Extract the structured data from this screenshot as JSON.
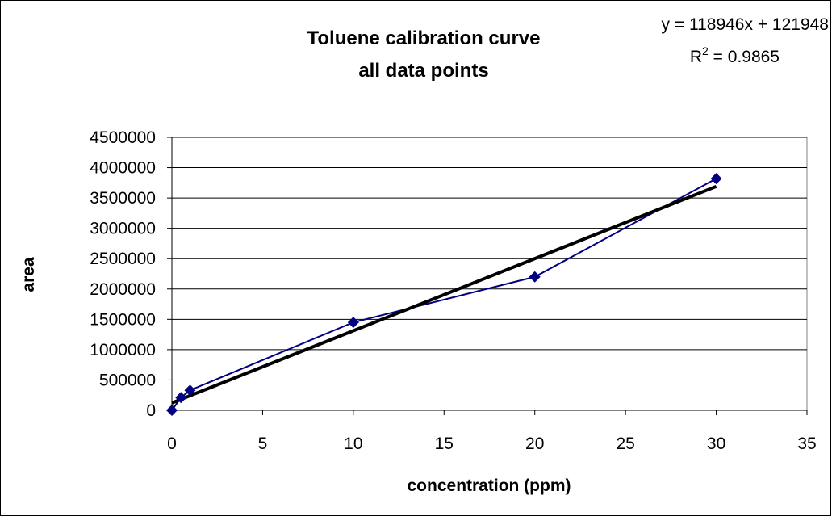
{
  "chart_data": {
    "type": "scatter",
    "title": [
      "Toluene calibration curve",
      "all data points"
    ],
    "equation": "y = 118946x + 121948",
    "r_squared_label": [
      "R",
      "2",
      " = 0.9865"
    ],
    "x_label": "concentration (ppm)",
    "y_label": "area",
    "series": [
      {
        "color": "#000080",
        "x": [
          0,
          0.5,
          1,
          10,
          20,
          30
        ],
        "values": [
          0,
          210000,
          330000,
          1450000,
          2200000,
          3820000
        ]
      }
    ],
    "trendline": {
      "slope": 118946,
      "intercept": 121948,
      "x": [
        0,
        30
      ],
      "color": "#000000"
    },
    "xlim": [
      0,
      35
    ],
    "xticks": [
      0,
      5,
      10,
      15,
      20,
      25,
      30,
      35
    ],
    "ylim": [
      0,
      4500000
    ],
    "yticks": [
      0,
      500000,
      1000000,
      1500000,
      2000000,
      2500000,
      3000000,
      3500000,
      4000000,
      4500000
    ],
    "grid": true
  }
}
